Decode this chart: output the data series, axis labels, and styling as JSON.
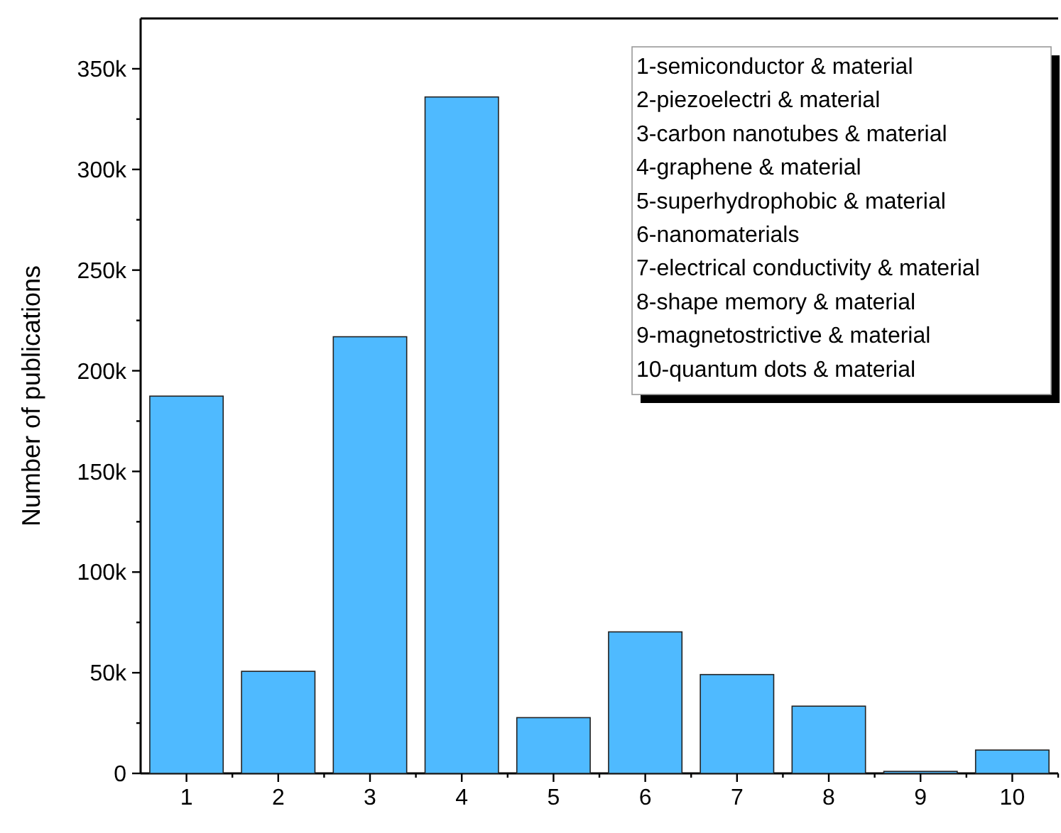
{
  "chart_data": {
    "type": "bar",
    "ylabel": "Number of publications",
    "categories": [
      "1",
      "2",
      "3",
      "4",
      "5",
      "6",
      "7",
      "8",
      "9",
      "10"
    ],
    "values": [
      187400,
      50700,
      216900,
      336000,
      27700,
      70300,
      49100,
      33400,
      1000,
      11600
    ],
    "color": "#4fbaff",
    "ylim": [
      0,
      375000
    ],
    "yticks": [
      {
        "value": 0,
        "label": "0"
      },
      {
        "value": 25000,
        "label": null
      },
      {
        "value": 50000,
        "label": "50k"
      },
      {
        "value": 75000,
        "label": null
      },
      {
        "value": 100000,
        "label": "100k"
      },
      {
        "value": 125000,
        "label": null
      },
      {
        "value": 150000,
        "label": "150k"
      },
      {
        "value": 175000,
        "label": null
      },
      {
        "value": 200000,
        "label": "200k"
      },
      {
        "value": 225000,
        "label": null
      },
      {
        "value": 250000,
        "label": "250k"
      },
      {
        "value": 275000,
        "label": null
      },
      {
        "value": 300000,
        "label": "300k"
      },
      {
        "value": 325000,
        "label": null
      },
      {
        "value": 350000,
        "label": "350k"
      }
    ],
    "annotations": [
      "1-semiconductor & material",
      "2-piezoelectri & material",
      "3-carbon nanotubes & material",
      "4-graphene & material",
      "5-superhydrophobic & material",
      "6-nanomaterials",
      "7-electrical conductivity & material",
      "8-shape memory & material",
      "9-magnetostrictive & material",
      "10-quantum dots & material"
    ]
  }
}
